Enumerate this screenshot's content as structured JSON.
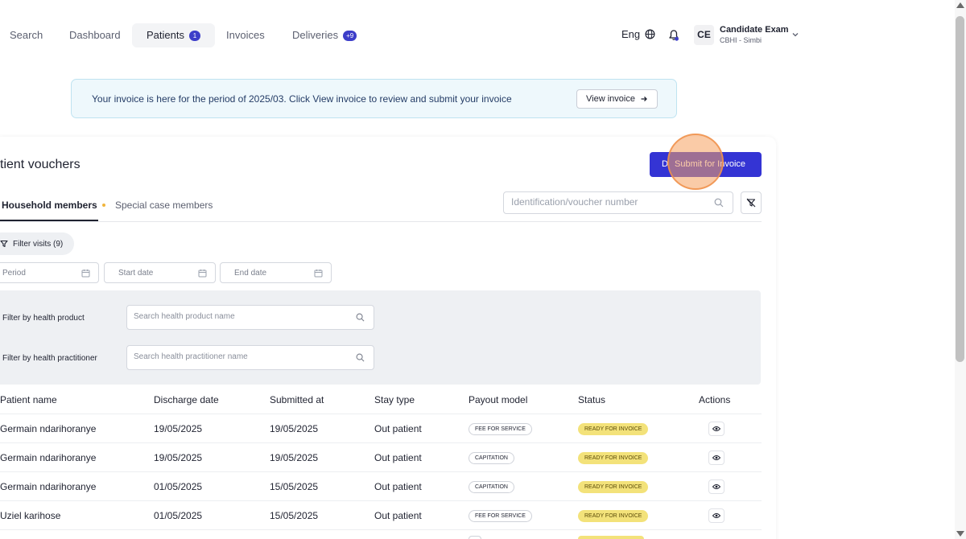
{
  "nav": {
    "items": [
      {
        "label": "Search",
        "badge": ""
      },
      {
        "label": "Dashboard",
        "badge": ""
      },
      {
        "label": "Patients",
        "badge": "1"
      },
      {
        "label": "Invoices",
        "badge": ""
      },
      {
        "label": "Deliveries",
        "badge": "+9"
      }
    ],
    "active": "Patients",
    "language": "Eng",
    "user": {
      "initials": "CE",
      "name": "Candidate Exam",
      "org": "CBHI - Simbi"
    }
  },
  "banner": {
    "text": "Your invoice is here for the period of 2025/03. Click View invoice to review and submit your invoice",
    "button_label": "View invoice"
  },
  "card": {
    "title": "tient vouchers",
    "submit_prefix": "D",
    "submit_label": "Submit for Invoice",
    "tabs": [
      "Household members",
      "Special case members"
    ],
    "search_placeholder": "Identification/voucher number",
    "filter_visits_label": "Filter visits (9)",
    "date_filters": {
      "period": "Period",
      "start": "Start date",
      "end": "End date"
    },
    "product_filter": {
      "label": "Filter by health product",
      "placeholder": "Search health product name"
    },
    "practitioner_filter": {
      "label": "Filter by health practitioner",
      "placeholder": "Search health practitioner name"
    }
  },
  "table": {
    "columns": [
      "Patient name",
      "Discharge date",
      "Submitted at",
      "Stay type",
      "Payout model",
      "Status",
      "Actions"
    ],
    "rows": [
      {
        "patient": "Germain ndarihoranye",
        "discharge": "19/05/2025",
        "submitted": "19/05/2025",
        "stay": "Out patient",
        "payout": "FEE FOR SERVICE",
        "status": "READY FOR INVOICE"
      },
      {
        "patient": "Germain ndarihoranye",
        "discharge": "19/05/2025",
        "submitted": "19/05/2025",
        "stay": "Out patient",
        "payout": "CAPITATION",
        "status": "READY FOR INVOICE"
      },
      {
        "patient": "Germain ndarihoranye",
        "discharge": "01/05/2025",
        "submitted": "15/05/2025",
        "stay": "Out patient",
        "payout": "CAPITATION",
        "status": "READY FOR INVOICE"
      },
      {
        "patient": "Uziel karihose",
        "discharge": "01/05/2025",
        "submitted": "15/05/2025",
        "stay": "Out patient",
        "payout": "FEE FOR SERVICE",
        "status": "READY FOR INVOICE"
      }
    ]
  },
  "colors": {
    "accent": "#3434d4",
    "badge": "#3d3ec9",
    "status_ready": "#f3e27a",
    "banner_bg": "#eef8fc"
  }
}
